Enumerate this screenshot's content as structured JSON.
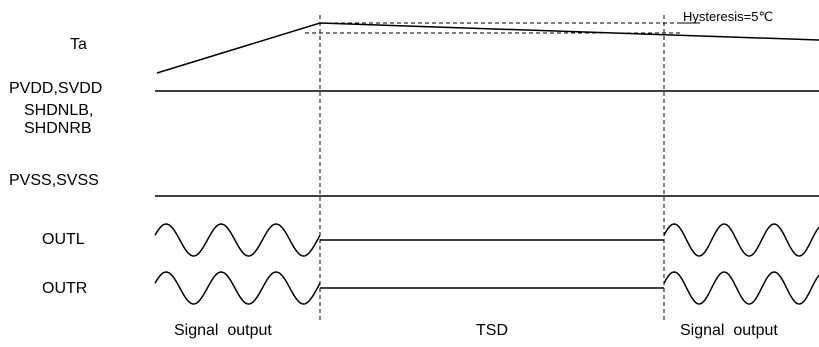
{
  "signals": {
    "ta": "Ta",
    "supply": "PVDD,SVDD",
    "shdn_line1": "SHDNLB,",
    "shdn_line2": "SHDNRB",
    "ground": "PVSS,SVSS",
    "outl": "OUTL",
    "outr": "OUTR"
  },
  "annotation": {
    "hysteresis": "Hysteresis=5℃"
  },
  "phases": {
    "before": "Signal  output",
    "during": "TSD",
    "after": "Signal  output"
  },
  "colors": {
    "line": "#000000",
    "background": "#ffffff"
  }
}
